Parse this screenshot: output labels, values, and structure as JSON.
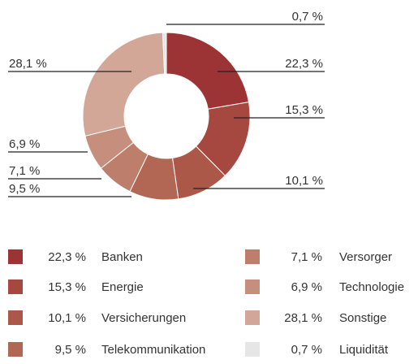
{
  "chart_data": {
    "type": "donut",
    "categories": [
      "Banken",
      "Energie",
      "Versicherungen",
      "Telekommunikation",
      "Versorger",
      "Technologie",
      "Sonstige",
      "Liquidität"
    ],
    "values": [
      22.3,
      15.3,
      10.1,
      9.5,
      7.1,
      6.9,
      28.1,
      0.7
    ],
    "value_labels": [
      "22,3 %",
      "15,3 %",
      "10,1 %",
      "9,5 %",
      "7,1 %",
      "6,9 %",
      "28,1 %",
      "0,7 %"
    ],
    "colors": [
      "#9c3436",
      "#a6483f",
      "#ac5849",
      "#b26754",
      "#bd7e6b",
      "#c68f7d",
      "#d3a797",
      "#e6e6e6"
    ]
  }
}
